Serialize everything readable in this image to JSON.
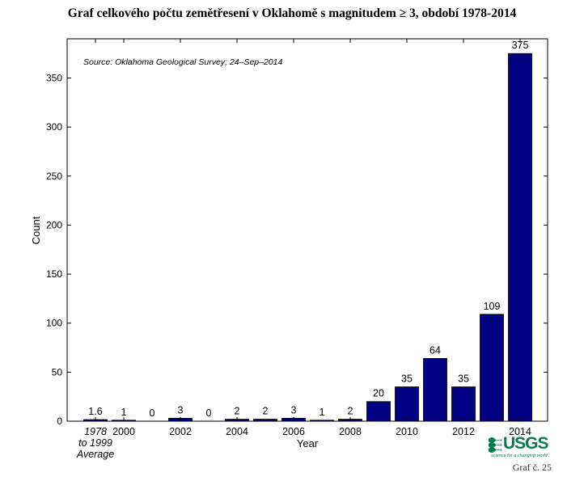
{
  "page": {
    "title": "Graf celkového počtu zemětřesení v Oklahomě s magnitudem ≥ 3, období 1978-2014",
    "caption": "Graf č. 25",
    "logo": {
      "text": "USGS",
      "tagline": "science for a changing world",
      "color": "#0a7a4f"
    }
  },
  "chart_data": {
    "type": "bar",
    "title": "",
    "annotation": "Source: Oklahoma Geological Survey; 24–Sep–2014",
    "xlabel": "Year",
    "ylabel": "Count",
    "ylim": [
      0,
      390
    ],
    "yticks": [
      0,
      50,
      100,
      150,
      200,
      250,
      300,
      350
    ],
    "categories": [
      "1978 to 1999 Average",
      "2000",
      "2001",
      "2002",
      "2003",
      "2004",
      "2005",
      "2006",
      "2007",
      "2008",
      "2009",
      "2010",
      "2011",
      "2012",
      "2013",
      "2014"
    ],
    "x_tick_labels": [
      {
        "category": 0,
        "lines": [
          "1978",
          "to 1999",
          "Average"
        ],
        "italic": true
      },
      {
        "category": 1,
        "lines": [
          "2000"
        ]
      },
      {
        "category": 3,
        "lines": [
          "2002"
        ]
      },
      {
        "category": 5,
        "lines": [
          "2004"
        ]
      },
      {
        "category": 7,
        "lines": [
          "2006"
        ]
      },
      {
        "category": 9,
        "lines": [
          "2008"
        ]
      },
      {
        "category": 11,
        "lines": [
          "2010"
        ]
      },
      {
        "category": 13,
        "lines": [
          "2012"
        ]
      },
      {
        "category": 15,
        "lines": [
          "2014"
        ]
      }
    ],
    "values": [
      1.6,
      1,
      0,
      3,
      0,
      2,
      2,
      3,
      1,
      2,
      20,
      35,
      64,
      35,
      109,
      375
    ],
    "data_labels": [
      "1.6",
      "1",
      "0",
      "3",
      "0",
      "2",
      "2",
      "3",
      "1",
      "2",
      "20",
      "35",
      "64",
      "35",
      "109",
      "375"
    ],
    "bar_color": "#000080",
    "grid": false,
    "legend": "none"
  }
}
